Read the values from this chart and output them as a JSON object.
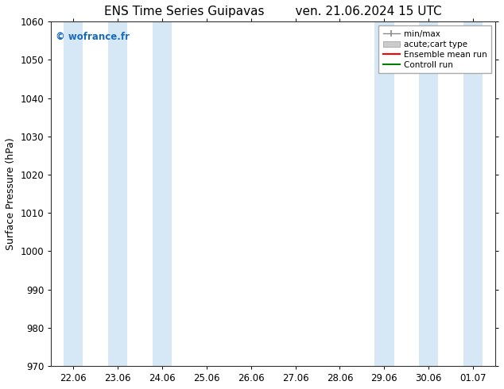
{
  "title": "ENS Time Series Guipavas        ven. 21.06.2024 15 UTC",
  "ylabel": "Surface Pressure (hPa)",
  "ylim": [
    970,
    1060
  ],
  "yticks": [
    970,
    980,
    990,
    1000,
    1010,
    1020,
    1030,
    1040,
    1050,
    1060
  ],
  "xlabel_ticks": [
    "22.06",
    "23.06",
    "24.06",
    "25.06",
    "26.06",
    "27.06",
    "28.06",
    "29.06",
    "30.06",
    "01.07"
  ],
  "watermark": "© wofrance.fr",
  "watermark_color": "#1a6abf",
  "band_color": "#d6e8f5",
  "band_halfwidth": 0.22,
  "shaded_centers": [
    0,
    1,
    2,
    7,
    8,
    9
  ],
  "bg_color": "#ffffff",
  "title_fontsize": 11,
  "tick_fontsize": 8.5,
  "ylabel_fontsize": 9
}
